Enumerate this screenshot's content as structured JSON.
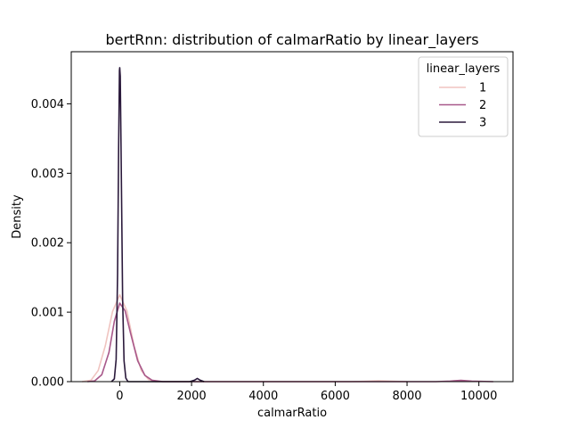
{
  "chart_data": {
    "type": "line",
    "title": "bertRnn: distribution of calmarRatio by linear_layers",
    "xlabel": "calmarRatio",
    "ylabel": "Density",
    "xlim": [
      -1350,
      10950
    ],
    "ylim": [
      0,
      0.00475
    ],
    "xticks": [
      0,
      2000,
      4000,
      6000,
      8000,
      10000
    ],
    "xtick_labels": [
      "0",
      "2000",
      "4000",
      "6000",
      "8000",
      "10000"
    ],
    "yticks": [
      0,
      0.001,
      0.002,
      0.003,
      0.004
    ],
    "ytick_labels": [
      "0.000",
      "0.001",
      "0.002",
      "0.003",
      "0.004"
    ],
    "grid": false,
    "legend": {
      "title": "linear_layers",
      "position": "top-right"
    },
    "series": [
      {
        "name": "1",
        "color": "#f0c4c0",
        "points": [
          [
            -1050,
            0.0
          ],
          [
            -800,
            2e-05
          ],
          [
            -600,
            0.00016
          ],
          [
            -400,
            0.00052
          ],
          [
            -200,
            0.00101
          ],
          [
            0,
            0.00125
          ],
          [
            200,
            0.00102
          ],
          [
            400,
            0.00051
          ],
          [
            600,
            0.00016
          ],
          [
            800,
            3e-05
          ],
          [
            1000,
            0.0
          ],
          [
            1400,
            0.0
          ],
          [
            6400,
            0.0
          ],
          [
            6800,
            4e-06
          ],
          [
            7200,
            1.2e-05
          ],
          [
            7600,
            5e-06
          ],
          [
            8000,
            0.0
          ]
        ]
      },
      {
        "name": "2",
        "color": "#a8588a",
        "points": [
          [
            -900,
            0.0
          ],
          [
            -700,
            1e-05
          ],
          [
            -500,
            0.0001
          ],
          [
            -300,
            0.00042
          ],
          [
            -150,
            0.00087
          ],
          [
            0,
            0.00113
          ],
          [
            150,
            0.00102
          ],
          [
            300,
            0.0007
          ],
          [
            500,
            0.0003
          ],
          [
            700,
            9e-05
          ],
          [
            900,
            2e-05
          ],
          [
            1200,
            0.0
          ],
          [
            8800,
            0.0
          ],
          [
            9200,
            8e-06
          ],
          [
            9500,
            1.8e-05
          ],
          [
            9800,
            8e-06
          ],
          [
            10400,
            0.0
          ]
        ]
      },
      {
        "name": "3",
        "color": "#2b1a3c",
        "points": [
          [
            -230,
            0.0
          ],
          [
            -150,
            4e-05
          ],
          [
            -100,
            0.00032
          ],
          [
            -60,
            0.00155
          ],
          [
            -30,
            0.0034
          ],
          [
            -8,
            0.00448
          ],
          [
            0,
            0.00452
          ],
          [
            15,
            0.0044
          ],
          [
            40,
            0.0032
          ],
          [
            80,
            0.0012
          ],
          [
            120,
            0.0003
          ],
          [
            170,
            5e-05
          ],
          [
            230,
            0.0
          ],
          [
            1950,
            0.0
          ],
          [
            2080,
            2e-05
          ],
          [
            2160,
            4.5e-05
          ],
          [
            2240,
            2e-05
          ],
          [
            2350,
            0.0
          ]
        ]
      }
    ]
  }
}
